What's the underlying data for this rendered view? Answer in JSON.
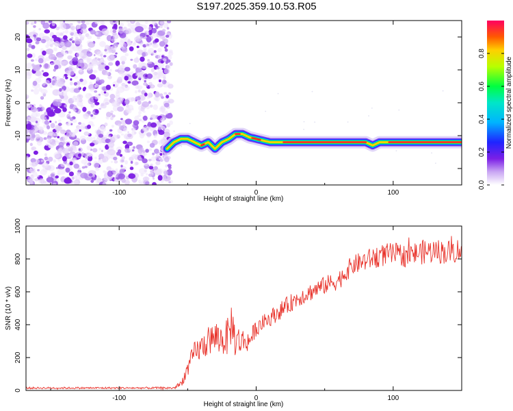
{
  "figure": {
    "title": "S197.2025.359.10.53.R05"
  },
  "colors": {
    "snr_line": "#e8322a",
    "scatter_noise": "#8a2be2",
    "ridge_outer": "#1e1eff",
    "ridge_inner": "#00e060",
    "ridge_core": "#ff2a2a"
  },
  "chart_data": [
    {
      "type": "heatmap",
      "name": "spectrogram",
      "xlabel": "Height of straight line (km)",
      "ylabel": "Frequency (Hz)",
      "xlim": [
        -168,
        150
      ],
      "ylim": [
        -25,
        25
      ],
      "x_ticks": [
        -100,
        0,
        100
      ],
      "x_tick_labels": [
        "-100",
        "0",
        "100"
      ],
      "y_ticks": [
        20,
        10,
        0,
        -10,
        -20
      ],
      "y_tick_labels": [
        "20",
        "10",
        "0",
        "-10",
        "-20"
      ],
      "noise_region_x": [
        -168,
        -65
      ],
      "ridge": {
        "x": [
          -65,
          -60,
          -55,
          -50,
          -45,
          -40,
          -35,
          -30,
          -25,
          -20,
          -15,
          -10,
          -5,
          0,
          5,
          10,
          20,
          40,
          60,
          80,
          85,
          90,
          100,
          120,
          150
        ],
        "y": [
          -14,
          -12,
          -11,
          -11,
          -12,
          -13,
          -12,
          -14,
          -12,
          -11,
          -9.5,
          -9.5,
          -10.5,
          -11,
          -11.5,
          -12,
          -12,
          -12,
          -12,
          -12,
          -13,
          -12,
          -12,
          -12,
          -12
        ]
      },
      "colorbar": {
        "label": "Normalized spectral amplitude",
        "range": [
          0,
          1
        ],
        "ticks": [
          0.0,
          0.2,
          0.4,
          0.6,
          0.8
        ],
        "tick_labels": [
          "0.0",
          "0.2",
          "0.4",
          "0.6",
          "0.8"
        ]
      }
    },
    {
      "type": "line",
      "name": "snr",
      "xlabel": "Height of straight line (km)",
      "ylabel": "SNR (10 * v/v)",
      "xlim": [
        -168,
        150
      ],
      "ylim": [
        0,
        1000
      ],
      "x_ticks": [
        -100,
        0,
        100
      ],
      "x_tick_labels": [
        "-100",
        "0",
        "100"
      ],
      "y_ticks": [
        0,
        200,
        400,
        600,
        800,
        1000
      ],
      "y_tick_labels": [
        "0",
        "200",
        "400",
        "600",
        "800",
        "1000"
      ],
      "series": [
        {
          "name": "SNR",
          "x": [
            -168,
            -120,
            -80,
            -60,
            -55,
            -50,
            -45,
            -40,
            -35,
            -30,
            -25,
            -20,
            -18,
            -15,
            -10,
            -5,
            0,
            5,
            10,
            20,
            30,
            40,
            50,
            60,
            70,
            80,
            90,
            100,
            110,
            120,
            130,
            140,
            150
          ],
          "values": [
            15,
            15,
            15,
            15,
            40,
            130,
            230,
            260,
            300,
            320,
            310,
            330,
            420,
            300,
            300,
            300,
            380,
            410,
            440,
            500,
            560,
            600,
            640,
            670,
            760,
            790,
            820,
            830,
            820,
            840,
            850,
            840,
            860
          ],
          "noise_amplitude": [
            6,
            6,
            6,
            8,
            20,
            50,
            70,
            80,
            90,
            100,
            100,
            120,
            130,
            110,
            80,
            60,
            50,
            50,
            50,
            55,
            55,
            55,
            55,
            60,
            60,
            65,
            70,
            70,
            70,
            75,
            75,
            75,
            75
          ]
        }
      ]
    }
  ]
}
